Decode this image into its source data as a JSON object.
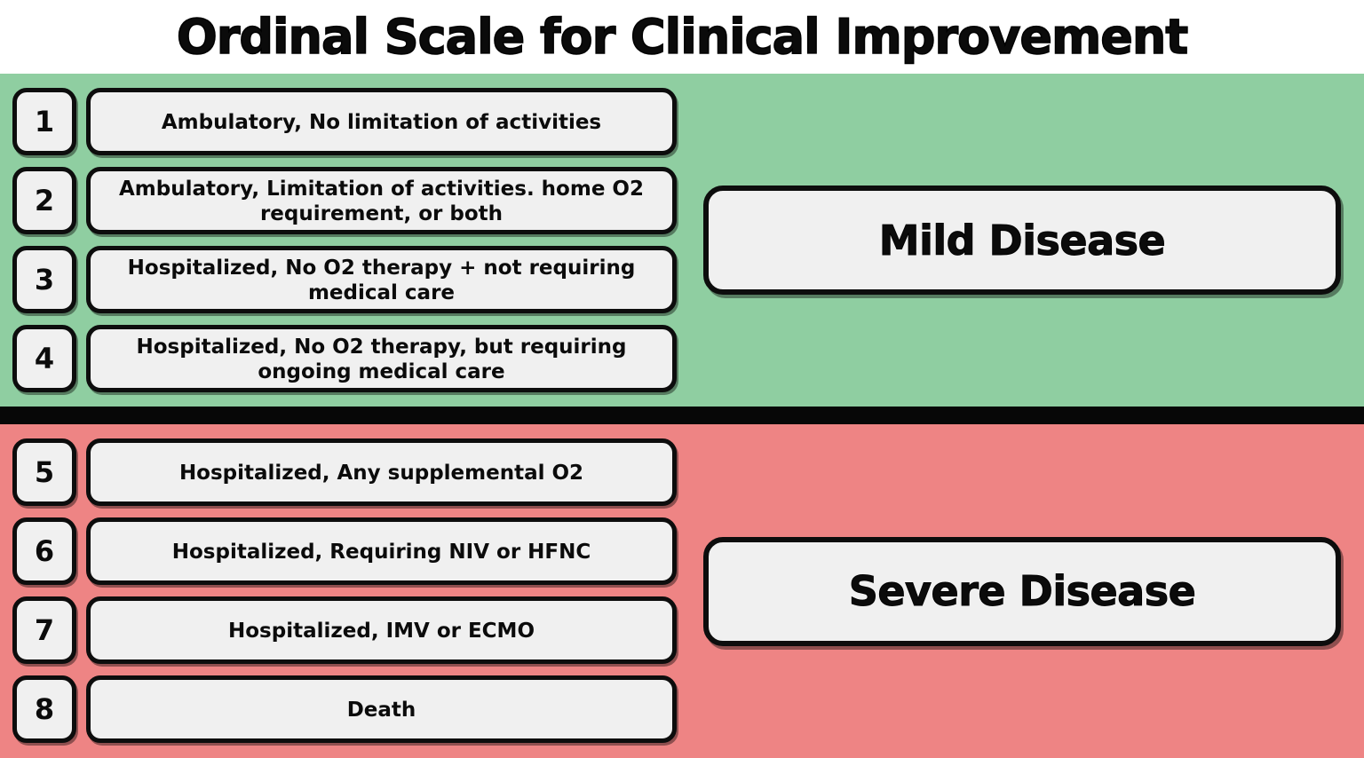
{
  "title": "Ordinal Scale for Clinical Improvement",
  "colors": {
    "mild_bg": "#8FCEA1",
    "severe_bg": "#EE8484",
    "box_bg": "#F0F0F0",
    "border": "#0D0D0D"
  },
  "sections": [
    {
      "name": "mild",
      "label": "Mild Disease",
      "rows": [
        {
          "num": "1",
          "text": "Ambulatory, No limitation of activities"
        },
        {
          "num": "2",
          "text": "Ambulatory, Limitation of activities. home O2 requirement, or both"
        },
        {
          "num": "3",
          "text": "Hospitalized, No O2 therapy + not requiring medical care"
        },
        {
          "num": "4",
          "text": "Hospitalized, No O2 therapy, but requiring ongoing medical care"
        }
      ]
    },
    {
      "name": "severe",
      "label": "Severe Disease",
      "rows": [
        {
          "num": "5",
          "text": "Hospitalized, Any supplemental O2"
        },
        {
          "num": "6",
          "text": "Hospitalized, Requiring NIV or HFNC"
        },
        {
          "num": "7",
          "text": "Hospitalized, IMV or ECMO"
        },
        {
          "num": "8",
          "text": "Death"
        }
      ]
    }
  ]
}
